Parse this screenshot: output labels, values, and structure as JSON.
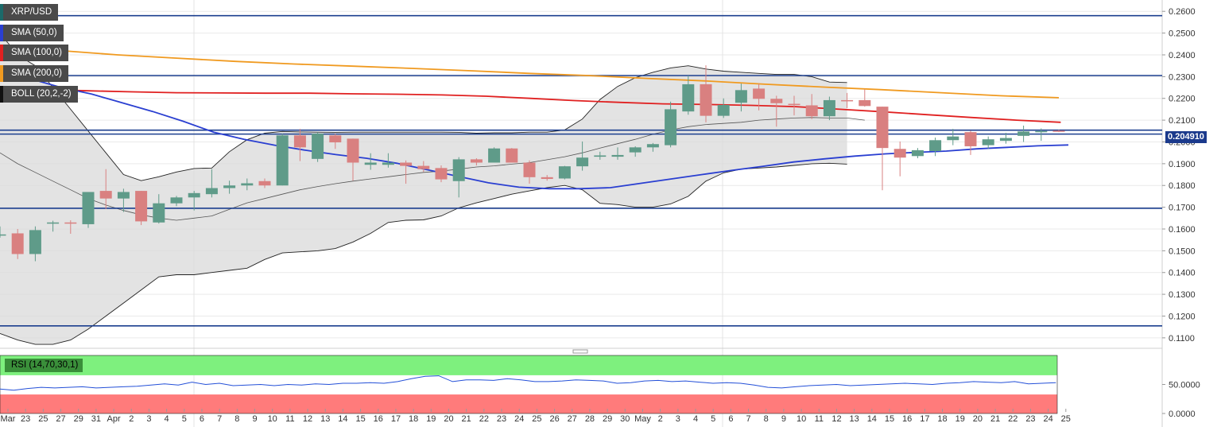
{
  "legend": {
    "pair": "XRP/USD",
    "sma50": "SMA (50,0)",
    "sma100": "SMA (100,0)",
    "sma200": "SMA (200,0)",
    "boll": "BOLL (20,2,-2)",
    "rsi": "RSI (14,70,30,1)"
  },
  "colors": {
    "bull": "#5f9b89",
    "bear": "#d98080",
    "hline": "#1c3f8f",
    "sma50": "#2a3fd1",
    "sma100": "#e02020",
    "sma200": "#f09a20",
    "bb_fill": "#d9d9d9",
    "bb_line": "#222222",
    "rsi_line": "#2450d8",
    "rsi_overbought": "#7ef07e",
    "rsi_oversold": "#ff7b7b"
  },
  "current_price": "0.204910",
  "chart_data": {
    "type": "candlestick",
    "title": "XRP/USD",
    "ylim": [
      0.1052,
      0.2652
    ],
    "y_ticks": [
      "0.2600",
      "0.2500",
      "0.2400",
      "0.2300",
      "0.2200",
      "0.2100",
      "0.2000",
      "0.1900",
      "0.1800",
      "0.1700",
      "0.1600",
      "0.1500",
      "0.1400",
      "0.1300",
      "0.1200",
      "0.1100"
    ],
    "x_ticks": [
      "Mar",
      "23",
      "25",
      "27",
      "29",
      "31",
      "Apr",
      "2",
      "3",
      "4",
      "5",
      "6",
      "7",
      "8",
      "9",
      "10",
      "11",
      "12",
      "13",
      "14",
      "15",
      "16",
      "17",
      "18",
      "19",
      "20",
      "21",
      "22",
      "23",
      "24",
      "25",
      "26",
      "27",
      "28",
      "29",
      "30",
      "May",
      "2",
      "3",
      "4",
      "5",
      "6",
      "7",
      "8",
      "9",
      "10",
      "11",
      "12",
      "13",
      "14",
      "15",
      "16",
      "17",
      "18",
      "19",
      "20",
      "21",
      "22",
      "23",
      "24",
      "25"
    ],
    "horizontal_levels": [
      0.258,
      0.2305,
      0.2054,
      0.2036,
      0.1695,
      0.1155
    ],
    "candles": [
      {
        "o": 0.1575,
        "h": 0.1612,
        "l": 0.156,
        "c": 0.1575
      },
      {
        "o": 0.158,
        "h": 0.16,
        "l": 0.1462,
        "c": 0.1485
      },
      {
        "o": 0.1485,
        "h": 0.1612,
        "l": 0.1452,
        "c": 0.1595
      },
      {
        "o": 0.1625,
        "h": 0.1638,
        "l": 0.1588,
        "c": 0.163
      },
      {
        "o": 0.163,
        "h": 0.164,
        "l": 0.1578,
        "c": 0.1625
      },
      {
        "o": 0.1622,
        "h": 0.1768,
        "l": 0.1605,
        "c": 0.177
      },
      {
        "o": 0.1775,
        "h": 0.1875,
        "l": 0.1692,
        "c": 0.174
      },
      {
        "o": 0.174,
        "h": 0.1785,
        "l": 0.1678,
        "c": 0.177
      },
      {
        "o": 0.1775,
        "h": 0.1775,
        "l": 0.1618,
        "c": 0.1635
      },
      {
        "o": 0.163,
        "h": 0.176,
        "l": 0.1625,
        "c": 0.1718
      },
      {
        "o": 0.1718,
        "h": 0.1752,
        "l": 0.1705,
        "c": 0.1745
      },
      {
        "o": 0.1745,
        "h": 0.1775,
        "l": 0.1685,
        "c": 0.1765
      },
      {
        "o": 0.176,
        "h": 0.1875,
        "l": 0.1745,
        "c": 0.1788
      },
      {
        "o": 0.1788,
        "h": 0.1822,
        "l": 0.1762,
        "c": 0.18
      },
      {
        "o": 0.18,
        "h": 0.1832,
        "l": 0.1778,
        "c": 0.181
      },
      {
        "o": 0.182,
        "h": 0.1832,
        "l": 0.1788,
        "c": 0.18
      },
      {
        "o": 0.18,
        "h": 0.2038,
        "l": 0.18,
        "c": 0.203
      },
      {
        "o": 0.203,
        "h": 0.206,
        "l": 0.1912,
        "c": 0.1975
      },
      {
        "o": 0.1922,
        "h": 0.2045,
        "l": 0.1908,
        "c": 0.2038
      },
      {
        "o": 0.203,
        "h": 0.2038,
        "l": 0.1968,
        "c": 0.1998
      },
      {
        "o": 0.2015,
        "h": 0.2015,
        "l": 0.1822,
        "c": 0.1905
      },
      {
        "o": 0.1895,
        "h": 0.1948,
        "l": 0.1872,
        "c": 0.1905
      },
      {
        "o": 0.1895,
        "h": 0.1948,
        "l": 0.1882,
        "c": 0.1905
      },
      {
        "o": 0.1905,
        "h": 0.1915,
        "l": 0.1808,
        "c": 0.189
      },
      {
        "o": 0.189,
        "h": 0.1912,
        "l": 0.1862,
        "c": 0.1875
      },
      {
        "o": 0.188,
        "h": 0.1892,
        "l": 0.1815,
        "c": 0.1828
      },
      {
        "o": 0.182,
        "h": 0.193,
        "l": 0.1745,
        "c": 0.192
      },
      {
        "o": 0.192,
        "h": 0.1925,
        "l": 0.1892,
        "c": 0.1905
      },
      {
        "o": 0.1905,
        "h": 0.1975,
        "l": 0.1905,
        "c": 0.197
      },
      {
        "o": 0.197,
        "h": 0.1972,
        "l": 0.1908,
        "c": 0.1905
      },
      {
        "o": 0.1905,
        "h": 0.1915,
        "l": 0.1808,
        "c": 0.1838
      },
      {
        "o": 0.1838,
        "h": 0.1848,
        "l": 0.1822,
        "c": 0.183
      },
      {
        "o": 0.1832,
        "h": 0.189,
        "l": 0.1828,
        "c": 0.1888
      },
      {
        "o": 0.1888,
        "h": 0.2002,
        "l": 0.1868,
        "c": 0.1928
      },
      {
        "o": 0.1932,
        "h": 0.1955,
        "l": 0.1918,
        "c": 0.1938
      },
      {
        "o": 0.1932,
        "h": 0.1975,
        "l": 0.1918,
        "c": 0.194
      },
      {
        "o": 0.1952,
        "h": 0.198,
        "l": 0.1932,
        "c": 0.1975
      },
      {
        "o": 0.1975,
        "h": 0.1995,
        "l": 0.1955,
        "c": 0.199
      },
      {
        "o": 0.1985,
        "h": 0.2185,
        "l": 0.1975,
        "c": 0.215
      },
      {
        "o": 0.214,
        "h": 0.2305,
        "l": 0.2125,
        "c": 0.2265
      },
      {
        "o": 0.2265,
        "h": 0.2352,
        "l": 0.209,
        "c": 0.212
      },
      {
        "o": 0.212,
        "h": 0.22,
        "l": 0.211,
        "c": 0.217
      },
      {
        "o": 0.218,
        "h": 0.2268,
        "l": 0.214,
        "c": 0.2238
      },
      {
        "o": 0.2245,
        "h": 0.2268,
        "l": 0.2145,
        "c": 0.2198
      },
      {
        "o": 0.2198,
        "h": 0.2212,
        "l": 0.207,
        "c": 0.2178
      },
      {
        "o": 0.2175,
        "h": 0.2212,
        "l": 0.2122,
        "c": 0.217
      },
      {
        "o": 0.2168,
        "h": 0.222,
        "l": 0.2105,
        "c": 0.2118
      },
      {
        "o": 0.2118,
        "h": 0.2208,
        "l": 0.21,
        "c": 0.2192
      },
      {
        "o": 0.2192,
        "h": 0.2225,
        "l": 0.2155,
        "c": 0.2188
      },
      {
        "o": 0.2192,
        "h": 0.2242,
        "l": 0.2162,
        "c": 0.2165
      },
      {
        "o": 0.2162,
        "h": 0.2162,
        "l": 0.1778,
        "c": 0.1972
      },
      {
        "o": 0.1968,
        "h": 0.2002,
        "l": 0.1842,
        "c": 0.1928
      },
      {
        "o": 0.1935,
        "h": 0.1972,
        "l": 0.1925,
        "c": 0.1962
      },
      {
        "o": 0.1958,
        "h": 0.202,
        "l": 0.1935,
        "c": 0.2008
      },
      {
        "o": 0.2008,
        "h": 0.206,
        "l": 0.1985,
        "c": 0.2025
      },
      {
        "o": 0.2045,
        "h": 0.2052,
        "l": 0.194,
        "c": 0.198
      },
      {
        "o": 0.1985,
        "h": 0.2025,
        "l": 0.1968,
        "c": 0.2012
      },
      {
        "o": 0.2005,
        "h": 0.2042,
        "l": 0.1992,
        "c": 0.2018
      },
      {
        "o": 0.2028,
        "h": 0.2075,
        "l": 0.2,
        "c": 0.2048
      },
      {
        "o": 0.205,
        "h": 0.2062,
        "l": 0.2005,
        "c": 0.205
      },
      {
        "o": 0.2052,
        "h": 0.2055,
        "l": 0.2045,
        "c": 0.2049
      }
    ],
    "sma50": [
      0.233,
      0.229,
      0.225,
      0.222,
      0.218,
      0.214,
      0.2095,
      0.2045,
      0.2012,
      0.1985,
      0.1962,
      0.1942,
      0.1925,
      0.1902,
      0.1872,
      0.1842,
      0.1812,
      0.1792,
      0.1785,
      0.1785,
      0.179,
      0.181,
      0.183,
      0.185,
      0.187,
      0.1888,
      0.1908,
      0.1922,
      0.1935,
      0.1945,
      0.1952,
      0.1958,
      0.1968,
      0.1975,
      0.1982,
      0.1986
    ],
    "sma100": [
      0.2242,
      0.224,
      0.2235,
      0.223,
      0.2226,
      0.2225,
      0.2224,
      0.2224,
      0.2221,
      0.2219,
      0.2216,
      0.221,
      0.22,
      0.219,
      0.2182,
      0.2175,
      0.2172,
      0.2168,
      0.2162,
      0.215,
      0.2138,
      0.2125,
      0.2112,
      0.21,
      0.209
    ],
    "sma200": [
      0.244,
      0.242,
      0.24,
      0.2385,
      0.237,
      0.2358,
      0.2348,
      0.2338,
      0.2327,
      0.2315,
      0.2305,
      0.2292,
      0.228,
      0.2265,
      0.2252,
      0.224,
      0.2226,
      0.2212,
      0.2203
    ],
    "bb_upper": [
      0.25,
      0.24,
      0.235,
      0.225,
      0.215,
      0.205,
      0.195,
      0.185,
      0.1822,
      0.184,
      0.1862,
      0.1878,
      0.188,
      0.1955,
      0.201,
      0.204,
      0.2048,
      0.2046,
      0.2045,
      0.2044,
      0.2045,
      0.2045,
      0.2045,
      0.2045,
      0.2045,
      0.2045,
      0.2044,
      0.204,
      0.2042,
      0.2042,
      0.2045,
      0.2045,
      0.2055,
      0.2105,
      0.2195,
      0.2255,
      0.2295,
      0.232,
      0.234,
      0.235,
      0.2335,
      0.2325,
      0.232,
      0.2315,
      0.231,
      0.231,
      0.23,
      0.2275,
      0.2273
    ],
    "bb_middle": [
      0.195,
      0.19,
      0.186,
      0.182,
      0.178,
      0.174,
      0.171,
      0.1685,
      0.1665,
      0.165,
      0.164,
      0.165,
      0.166,
      0.169,
      0.172,
      0.174,
      0.176,
      0.178,
      0.1795,
      0.1808,
      0.182,
      0.183,
      0.184,
      0.185,
      0.186,
      0.1866,
      0.1875,
      0.1885,
      0.189,
      0.1898,
      0.1905,
      0.1918,
      0.1932,
      0.195,
      0.1972,
      0.1992,
      0.2012,
      0.2035,
      0.2055,
      0.207,
      0.208,
      0.2085,
      0.209,
      0.21,
      0.2105,
      0.211,
      0.2112,
      0.211,
      0.211,
      0.21
    ],
    "bb_lower": [
      0.112,
      0.109,
      0.107,
      0.107,
      0.109,
      0.114,
      0.12,
      0.126,
      0.132,
      0.138,
      0.139,
      0.139,
      0.14,
      0.141,
      0.142,
      0.146,
      0.149,
      0.1495,
      0.15,
      0.151,
      0.154,
      0.158,
      0.163,
      0.164,
      0.1642,
      0.166,
      0.1697,
      0.172,
      0.174,
      0.176,
      0.1775,
      0.179,
      0.18,
      0.178,
      0.1718,
      0.1712,
      0.17,
      0.17,
      0.1715,
      0.175,
      0.182,
      0.1858,
      0.1875,
      0.188,
      0.1885,
      0.1892,
      0.19,
      0.1902,
      0.1898
    ],
    "rsi": {
      "ylim": [
        0,
        100
      ],
      "y_ticks": [
        "50.0000",
        "0.0000"
      ],
      "values": [
        42,
        40,
        43,
        45,
        44,
        45,
        46,
        44,
        45,
        46,
        47,
        49,
        51,
        49,
        54,
        50,
        52,
        48,
        49,
        50,
        48,
        50,
        49,
        51,
        50,
        52,
        52,
        53,
        52,
        55,
        60,
        64,
        65,
        55,
        58,
        58,
        57,
        60,
        58,
        55,
        55,
        56,
        58,
        57,
        56,
        52,
        53,
        56,
        57,
        55,
        56,
        54,
        52,
        53,
        52,
        49,
        45,
        44,
        46,
        48,
        49,
        50,
        48,
        49,
        50,
        51,
        52,
        51,
        50,
        52,
        53,
        55,
        54,
        53,
        55,
        51,
        52,
        53
      ]
    }
  }
}
